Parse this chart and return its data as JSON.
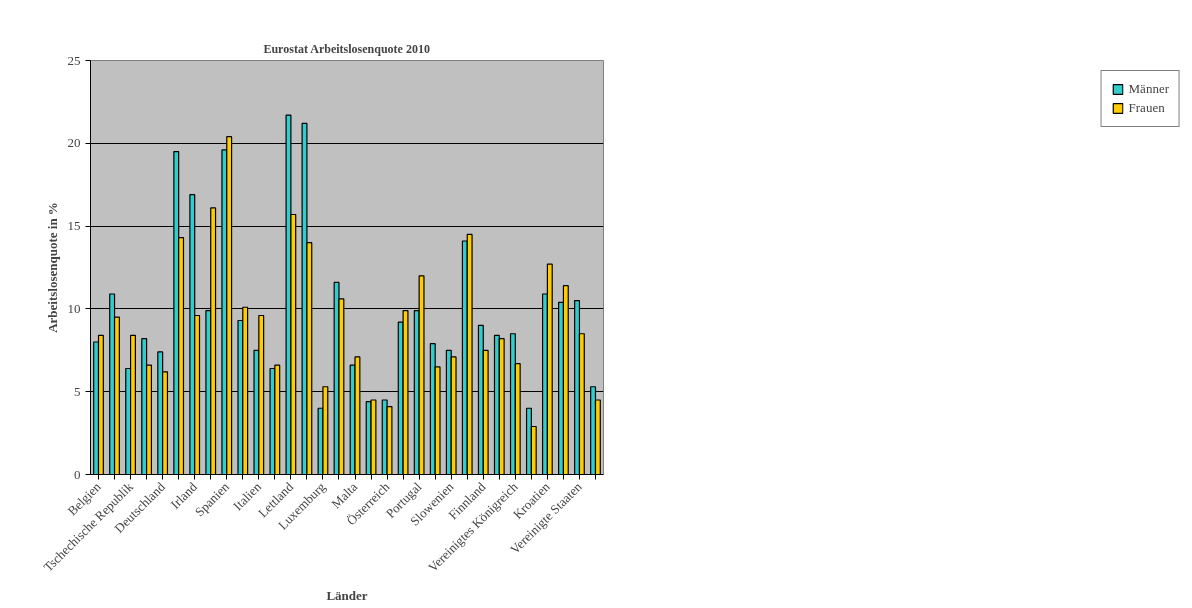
{
  "chart_data": {
    "type": "bar",
    "title": "Eurostat Arbeitslosenquote 2010",
    "xlabel": "Länder",
    "ylabel": "Arbeitslosenquote in %",
    "categories": [
      "Belgien",
      null,
      "Tschechische Republik",
      null,
      "Deutschland",
      null,
      "Irland",
      null,
      "Spanien",
      null,
      "Italien",
      null,
      "Lettland",
      null,
      "Luxemburg",
      null,
      "Malta",
      null,
      "Österreich",
      null,
      "Portugal",
      null,
      "Slowenien",
      null,
      "Finnland",
      null,
      "Vereinigtes Königreich",
      null,
      "Kroatien",
      null,
      "Vereinigte Staaten",
      null
    ],
    "series": [
      {
        "name": "Männer",
        "color": "#33cccc",
        "values": [
          8.0,
          10.9,
          6.4,
          8.2,
          7.4,
          19.5,
          16.9,
          9.9,
          19.6,
          9.3,
          7.5,
          6.4,
          21.7,
          21.2,
          4.0,
          11.6,
          6.6,
          4.4,
          4.5,
          9.2,
          9.9,
          7.9,
          7.5,
          14.1,
          9.0,
          8.4,
          8.5,
          4.0,
          10.9,
          10.4,
          10.5,
          5.3
        ]
      },
      {
        "name": "Frauen",
        "color": "#ffcc00",
        "values": [
          8.4,
          9.5,
          8.4,
          6.6,
          6.2,
          14.3,
          9.6,
          16.1,
          20.4,
          10.1,
          9.6,
          6.6,
          15.7,
          14.0,
          5.3,
          10.6,
          7.1,
          4.5,
          4.1,
          9.9,
          12.0,
          6.5,
          7.1,
          14.5,
          7.5,
          8.2,
          6.7,
          2.9,
          12.7,
          11.4,
          8.5,
          4.5
        ]
      }
    ],
    "ylim": [
      0,
      25
    ],
    "yticks": [
      0,
      5,
      10,
      15,
      20,
      25
    ],
    "grid": "y",
    "legend": "right"
  }
}
